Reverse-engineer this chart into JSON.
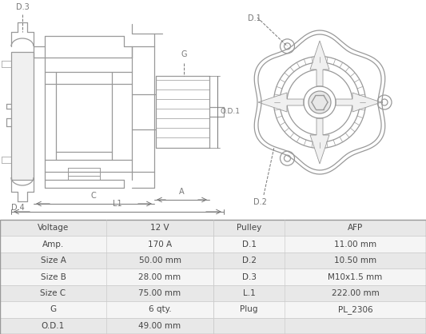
{
  "bg_color": "#ffffff",
  "table_rows_left": [
    [
      "Voltage",
      "12 V"
    ],
    [
      "Amp.",
      "170 A"
    ],
    [
      "Size A",
      "50.00 mm"
    ],
    [
      "Size B",
      "28.00 mm"
    ],
    [
      "Size C",
      "75.00 mm"
    ],
    [
      "G",
      "6 qty."
    ],
    [
      "O.D.1",
      "49.00 mm"
    ]
  ],
  "table_rows_right": [
    [
      "Pulley",
      "AFP"
    ],
    [
      "D.1",
      "11.00 mm"
    ],
    [
      "D.2",
      "10.50 mm"
    ],
    [
      "D.3",
      "M10x1.5 mm"
    ],
    [
      "L.1",
      "222.00 mm"
    ],
    [
      "Plug",
      "PL_2306"
    ],
    [
      "",
      ""
    ]
  ]
}
